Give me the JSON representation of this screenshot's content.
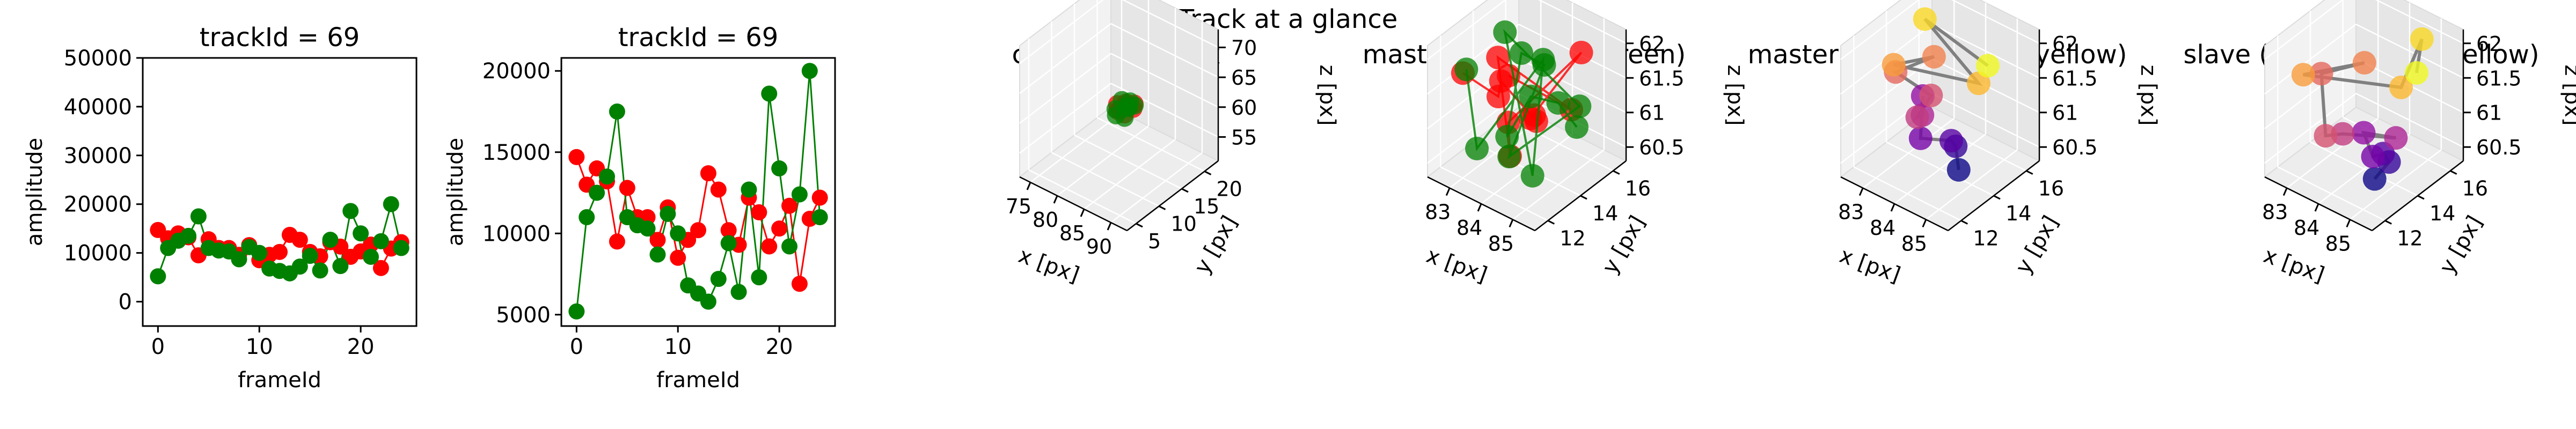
{
  "figure": {
    "suptitle": "Track at a glance"
  },
  "chart_data": [
    {
      "type": "line",
      "title": "trackId = 69",
      "xlabel": "frameId",
      "ylabel": "amplitude",
      "xlim": [
        -1.5,
        25.5
      ],
      "ylim": [
        -5000,
        50000
      ],
      "xticks": [
        0,
        10,
        20
      ],
      "yticks": [
        0,
        10000,
        20000,
        30000,
        40000,
        50000
      ],
      "series": [
        {
          "color": "#ff0000",
          "x": [
            0,
            1,
            2,
            3,
            4,
            5,
            6,
            7,
            8,
            9,
            10,
            11,
            12,
            13,
            14,
            15,
            16,
            17,
            18,
            19,
            20,
            21,
            22,
            23,
            24
          ],
          "values": [
            14700,
            13000,
            14000,
            13200,
            9500,
            12800,
            11000,
            11000,
            9600,
            11600,
            8500,
            9600,
            10200,
            13700,
            12700,
            10200,
            9300,
            12200,
            11300,
            9200,
            10300,
            11700,
            6900,
            10900,
            12200
          ]
        },
        {
          "color": "#008000",
          "x": [
            0,
            1,
            2,
            3,
            4,
            5,
            6,
            7,
            8,
            9,
            10,
            11,
            12,
            13,
            14,
            15,
            16,
            17,
            18,
            19,
            20,
            21,
            22,
            23,
            24
          ],
          "values": [
            5200,
            11000,
            12500,
            13500,
            17500,
            11000,
            10500,
            10300,
            8700,
            11200,
            10000,
            6800,
            6300,
            5800,
            7200,
            9400,
            6400,
            12700,
            7300,
            18600,
            14000,
            9200,
            12400,
            20000,
            11000
          ]
        }
      ]
    },
    {
      "type": "line",
      "title": "trackId = 69",
      "xlabel": "frameId",
      "ylabel": "amplitude",
      "xlim": [
        -1.5,
        25.5
      ],
      "ylim": [
        4300,
        20800
      ],
      "xticks": [
        0,
        10,
        20
      ],
      "yticks": [
        5000,
        10000,
        15000,
        20000
      ],
      "series": [
        {
          "color": "#ff0000",
          "x": [
            0,
            1,
            2,
            3,
            4,
            5,
            6,
            7,
            8,
            9,
            10,
            11,
            12,
            13,
            14,
            15,
            16,
            17,
            18,
            19,
            20,
            21,
            22,
            23,
            24
          ],
          "values": [
            14700,
            13000,
            14000,
            13200,
            9500,
            12800,
            11000,
            11000,
            9600,
            11600,
            8500,
            9600,
            10200,
            13700,
            12700,
            10200,
            9300,
            12200,
            11300,
            9200,
            10300,
            11700,
            6900,
            10900,
            12200
          ]
        },
        {
          "color": "#008000",
          "x": [
            0,
            1,
            2,
            3,
            4,
            5,
            6,
            7,
            8,
            9,
            10,
            11,
            12,
            13,
            14,
            15,
            16,
            17,
            18,
            19,
            20,
            21,
            22,
            23,
            24
          ],
          "values": [
            5200,
            11000,
            12500,
            13500,
            17500,
            11000,
            10500,
            10300,
            8700,
            11200,
            10000,
            6800,
            6300,
            5800,
            7200,
            9400,
            6400,
            12700,
            7300,
            18600,
            14000,
            9200,
            12400,
            20000,
            11000
          ]
        }
      ]
    },
    {
      "type": "scatter",
      "title": "context +- 10px",
      "xlabel": "x [px]",
      "ylabel": "y [px]",
      "zlabel": "z [px]",
      "xticks": [
        75,
        80,
        85,
        90
      ],
      "xlim": [
        73,
        93
      ],
      "yticks": [
        5,
        10,
        15,
        20
      ],
      "ylim": [
        3,
        23
      ],
      "zticks": [
        55,
        60,
        65,
        70
      ],
      "zlim": [
        51,
        73
      ],
      "series": [
        {
          "color": "#ff0000",
          "points": [
            [
              82.5,
              13.2,
              61.5
            ],
            [
              83.6,
              13.8,
              61.9
            ],
            [
              84.4,
              12.6,
              61.0
            ],
            [
              83.0,
              14.6,
              60.9
            ],
            [
              84.9,
              13.9,
              61.4
            ],
            [
              83.7,
              12.3,
              61.6
            ],
            [
              84.1,
              15.1,
              61.2
            ],
            [
              82.9,
              12.8,
              60.8
            ]
          ]
        },
        {
          "color": "#008000",
          "points": [
            [
              82.8,
              12.5,
              61.2
            ],
            [
              83.5,
              14.4,
              60.6
            ],
            [
              84.6,
              13.3,
              61.9
            ],
            [
              83.1,
              15.3,
              61.0
            ],
            [
              84.8,
              12.1,
              60.9
            ],
            [
              83.9,
              13.6,
              61.5
            ],
            [
              82.6,
              14.1,
              61.7
            ],
            [
              84.3,
              14.9,
              61.1
            ],
            [
              83.3,
              12.0,
              60.7
            ]
          ]
        }
      ]
    },
    {
      "type": "scatter",
      "title": "master(red) slave(green)",
      "xlabel": "x [px]",
      "ylabel": "y [px]",
      "zlabel": "z [px]",
      "xticks": [
        83,
        84,
        85
      ],
      "xlim": [
        82.3,
        85.7
      ],
      "yticks": [
        12,
        14,
        16
      ],
      "ylim": [
        11.2,
        16.8
      ],
      "zticks": [
        60.5,
        61.0,
        61.5,
        62.0
      ],
      "zlim": [
        60.3,
        62.2
      ],
      "series": [
        {
          "color": "#ff0000",
          "points": [
            [
              82.8,
              12.4,
              61.7
            ],
            [
              83.2,
              13.8,
              61.2
            ],
            [
              83.9,
              12.6,
              61.8
            ],
            [
              84.2,
              14.2,
              61.0
            ],
            [
              84.7,
              13.1,
              61.4
            ],
            [
              83.5,
              15.2,
              60.7
            ],
            [
              84.9,
              15.6,
              61.9
            ],
            [
              83.0,
              14.8,
              60.6
            ],
            [
              84.4,
              12.2,
              60.9
            ],
            [
              83.6,
              13.0,
              62.0
            ],
            [
              85.1,
              14.6,
              61.3
            ],
            [
              82.7,
              15.4,
              61.1
            ]
          ]
        },
        {
          "color": "#008000",
          "points": [
            [
              82.6,
              13.0,
              61.6
            ],
            [
              83.4,
              12.1,
              60.8
            ],
            [
              84.0,
              15.0,
              61.7
            ],
            [
              84.8,
              12.8,
              60.6
            ],
            [
              83.1,
              14.4,
              62.0
            ],
            [
              85.0,
              15.3,
              61.2
            ],
            [
              83.7,
              13.5,
              60.5
            ],
            [
              84.5,
              14.1,
              61.9
            ],
            [
              82.9,
              15.8,
              61.4
            ],
            [
              84.2,
              12.4,
              61.1
            ],
            [
              83.3,
              15.6,
              60.9
            ],
            [
              85.2,
              13.6,
              61.6
            ],
            [
              84.6,
              15.9,
              60.7
            ]
          ]
        }
      ]
    },
    {
      "type": "scatter",
      "title": "master (time: blue -> yellow)",
      "xlabel": "x [px]",
      "ylabel": "y [px]",
      "zlabel": "z [px]",
      "xticks": [
        83,
        84,
        85
      ],
      "xlim": [
        82.3,
        85.7
      ],
      "yticks": [
        12,
        14,
        16
      ],
      "ylim": [
        11.2,
        16.8
      ],
      "zticks": [
        60.5,
        61.0,
        61.5,
        62.0
      ],
      "zlim": [
        60.3,
        62.2
      ],
      "colormap": "plasma",
      "series": [
        {
          "points": [
            [
              84.9,
              13.4,
              60.6
            ],
            [
              84.6,
              13.8,
              60.8
            ],
            [
              84.2,
              14.3,
              60.7
            ],
            [
              83.9,
              13.0,
              60.9
            ],
            [
              83.4,
              14.1,
              61.2
            ],
            [
              83.7,
              13.5,
              61.1
            ],
            [
              84.0,
              12.6,
              61.3
            ],
            [
              83.2,
              15.0,
              61.0
            ],
            [
              82.8,
              13.6,
              61.5
            ],
            [
              83.5,
              14.6,
              61.7
            ],
            [
              83.1,
              12.9,
              61.8
            ],
            [
              84.5,
              15.4,
              61.4
            ],
            [
              82.9,
              15.2,
              62.0
            ],
            [
              85.1,
              14.8,
              61.9
            ]
          ]
        }
      ]
    },
    {
      "type": "scatter",
      "title": "slave (time: blue -> yellow)",
      "xlabel": "x [px]",
      "ylabel": "y [px]",
      "zlabel": "z [px]",
      "xticks": [
        83,
        84,
        85
      ],
      "xlim": [
        82.3,
        85.7
      ],
      "yticks": [
        12,
        14,
        16
      ],
      "ylim": [
        11.2,
        16.8
      ],
      "zticks": [
        60.5,
        61.0,
        61.5,
        62.0
      ],
      "zlim": [
        60.3,
        62.2
      ],
      "colormap": "plasma",
      "series": [
        {
          "points": [
            [
              84.8,
              13.1,
              60.5
            ],
            [
              85.0,
              13.6,
              60.7
            ],
            [
              84.5,
              14.2,
              60.6
            ],
            [
              84.9,
              12.8,
              60.9
            ],
            [
              84.3,
              13.4,
              61.0
            ],
            [
              84.7,
              14.6,
              60.8
            ],
            [
              84.1,
              12.5,
              61.1
            ],
            [
              83.3,
              13.0,
              60.8
            ],
            [
              82.7,
              13.9,
              61.4
            ],
            [
              83.6,
              14.8,
              61.6
            ],
            [
              82.9,
              12.4,
              61.7
            ],
            [
              84.4,
              15.5,
              61.3
            ],
            [
              84.8,
              16.0,
              62.0
            ],
            [
              85.2,
              14.9,
              61.8
            ]
          ]
        }
      ]
    }
  ]
}
